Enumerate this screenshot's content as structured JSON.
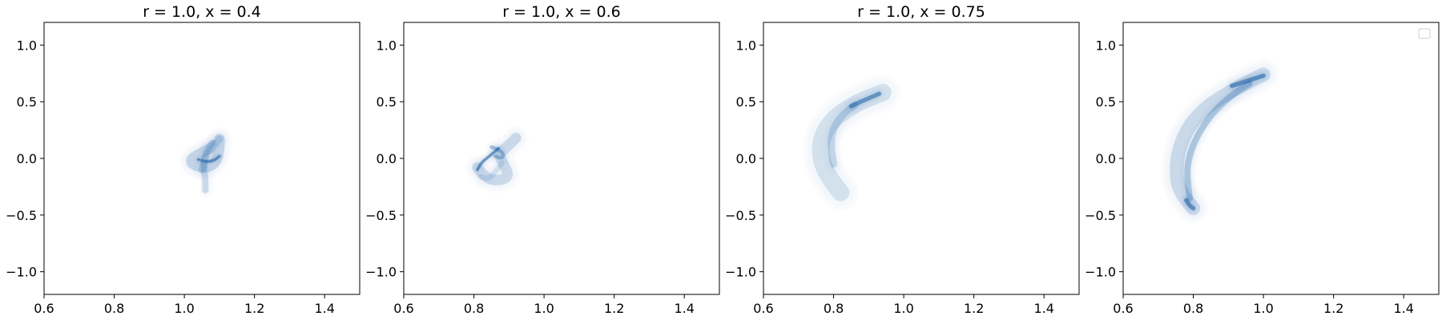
{
  "chart_data": [
    {
      "type": "density",
      "title": "r = 1.0, x = 0.4",
      "xlim": [
        0.6,
        1.5
      ],
      "ylim": [
        -1.2,
        1.2
      ],
      "xticks": [
        "0.6",
        "0.8",
        "1.0",
        "1.2",
        "1.4"
      ],
      "yticks": [
        "1.0",
        "0.5",
        "0.0",
        "−0.5",
        "−1.0"
      ],
      "grid": false,
      "legend": false,
      "color": "#08519c",
      "curves": [
        {
          "weight": 0.35,
          "width": 0.03,
          "points": [
            [
              1.09,
              0.12
            ],
            [
              1.05,
              0.05
            ],
            [
              1.02,
              0.0
            ],
            [
              1.02,
              -0.05
            ],
            [
              1.06,
              -0.09
            ],
            [
              1.09,
              -0.04
            ],
            [
              1.1,
              0.08
            ],
            [
              1.1,
              0.17
            ]
          ]
        },
        {
          "weight": 0.9,
          "width": 0.008,
          "points": [
            [
              1.04,
              -0.01
            ],
            [
              1.06,
              -0.03
            ],
            [
              1.085,
              -0.02
            ],
            [
              1.1,
              0.02
            ]
          ]
        },
        {
          "weight": 0.3,
          "width": 0.018,
          "points": [
            [
              1.08,
              0.14
            ],
            [
              1.06,
              0.06
            ],
            [
              1.055,
              -0.08
            ],
            [
              1.06,
              -0.18
            ],
            [
              1.06,
              -0.28
            ]
          ]
        },
        {
          "weight": 0.25,
          "width": 0.02,
          "points": [
            [
              1.1,
              0.17
            ],
            [
              1.08,
              0.1
            ],
            [
              1.06,
              0.01
            ],
            [
              1.05,
              -0.1
            ]
          ]
        }
      ]
    },
    {
      "type": "density",
      "title": "r = 1.0, x = 0.6",
      "xlim": [
        0.6,
        1.5
      ],
      "ylim": [
        -1.2,
        1.2
      ],
      "xticks": [
        "0.6",
        "0.8",
        "1.0",
        "1.2",
        "1.4"
      ],
      "yticks": [
        "1.0",
        "0.5",
        "0.0",
        "−0.5",
        "−1.0"
      ],
      "grid": false,
      "legend": false,
      "color": "#08519c",
      "curves": [
        {
          "weight": 0.3,
          "width": 0.03,
          "points": [
            [
              0.81,
              -0.08
            ],
            [
              0.83,
              -0.17
            ],
            [
              0.87,
              -0.2
            ],
            [
              0.9,
              -0.16
            ],
            [
              0.89,
              -0.08
            ],
            [
              0.87,
              0.03
            ],
            [
              0.9,
              0.12
            ],
            [
              0.92,
              0.18
            ]
          ]
        },
        {
          "weight": 0.95,
          "width": 0.008,
          "points": [
            [
              0.81,
              -0.1
            ],
            [
              0.82,
              -0.04
            ],
            [
              0.84,
              0.01
            ],
            [
              0.86,
              0.06
            ],
            [
              0.87,
              0.09
            ]
          ]
        },
        {
          "weight": 0.55,
          "width": 0.01,
          "points": [
            [
              0.85,
              0.1
            ],
            [
              0.87,
              0.08
            ],
            [
              0.885,
              0.04
            ],
            [
              0.88,
              0.0
            ],
            [
              0.86,
              0.02
            ]
          ]
        },
        {
          "weight": 0.2,
          "width": 0.015,
          "points": [
            [
              0.82,
              -0.16
            ],
            [
              0.84,
              -0.19
            ],
            [
              0.86,
              -0.12
            ],
            [
              0.88,
              -0.04
            ]
          ]
        }
      ]
    },
    {
      "type": "density",
      "title": "r = 1.0, x = 0.75",
      "xlim": [
        0.6,
        1.5
      ],
      "ylim": [
        -1.2,
        1.2
      ],
      "xticks": [
        "0.6",
        "0.8",
        "1.0",
        "1.2",
        "1.4"
      ],
      "yticks": [
        "1.0",
        "0.5",
        "0.0",
        "−0.5",
        "−1.0"
      ],
      "grid": false,
      "legend": false,
      "color": "#08519c",
      "curves": [
        {
          "weight": 0.25,
          "width": 0.05,
          "points": [
            [
              0.82,
              -0.3
            ],
            [
              0.78,
              -0.15
            ],
            [
              0.76,
              0.05
            ],
            [
              0.77,
              0.22
            ],
            [
              0.8,
              0.35
            ],
            [
              0.84,
              0.44
            ],
            [
              0.88,
              0.51
            ],
            [
              0.94,
              0.58
            ]
          ]
        },
        {
          "weight": 0.3,
          "width": 0.02,
          "points": [
            [
              0.8,
              -0.05
            ],
            [
              0.79,
              0.12
            ],
            [
              0.8,
              0.28
            ],
            [
              0.83,
              0.4
            ],
            [
              0.86,
              0.47
            ]
          ]
        },
        {
          "weight": 0.85,
          "width": 0.012,
          "points": [
            [
              0.85,
              0.46
            ],
            [
              0.87,
              0.49
            ],
            [
              0.9,
              0.53
            ],
            [
              0.93,
              0.57
            ]
          ]
        }
      ]
    },
    {
      "type": "density",
      "title": "",
      "xlim": [
        0.6,
        1.5
      ],
      "ylim": [
        -1.2,
        1.2
      ],
      "xticks": [
        "0.6",
        "0.8",
        "1.0",
        "1.2",
        "1.4"
      ],
      "yticks": [
        "1.0",
        "0.5",
        "0.0",
        "−0.5",
        "−1.0"
      ],
      "grid": false,
      "legend": true,
      "legend_position": "top-right",
      "color": "#08519c",
      "curves": [
        {
          "weight": 0.3,
          "width": 0.04,
          "points": [
            [
              0.8,
              -0.44
            ],
            [
              0.76,
              -0.3
            ],
            [
              0.75,
              -0.1
            ],
            [
              0.76,
              0.1
            ],
            [
              0.79,
              0.3
            ],
            [
              0.84,
              0.46
            ],
            [
              0.9,
              0.58
            ],
            [
              0.96,
              0.68
            ],
            [
              1.0,
              0.74
            ]
          ]
        },
        {
          "weight": 0.45,
          "width": 0.018,
          "points": [
            [
              0.79,
              -0.35
            ],
            [
              0.78,
              -0.15
            ],
            [
              0.79,
              0.05
            ],
            [
              0.82,
              0.25
            ],
            [
              0.86,
              0.42
            ],
            [
              0.91,
              0.56
            ],
            [
              0.96,
              0.66
            ]
          ]
        },
        {
          "weight": 0.9,
          "width": 0.012,
          "points": [
            [
              0.78,
              -0.37
            ],
            [
              0.79,
              -0.42
            ],
            [
              0.8,
              -0.44
            ]
          ]
        },
        {
          "weight": 0.9,
          "width": 0.012,
          "points": [
            [
              0.91,
              0.64
            ],
            [
              0.95,
              0.68
            ],
            [
              0.98,
              0.71
            ],
            [
              1.0,
              0.73
            ]
          ]
        }
      ]
    }
  ]
}
